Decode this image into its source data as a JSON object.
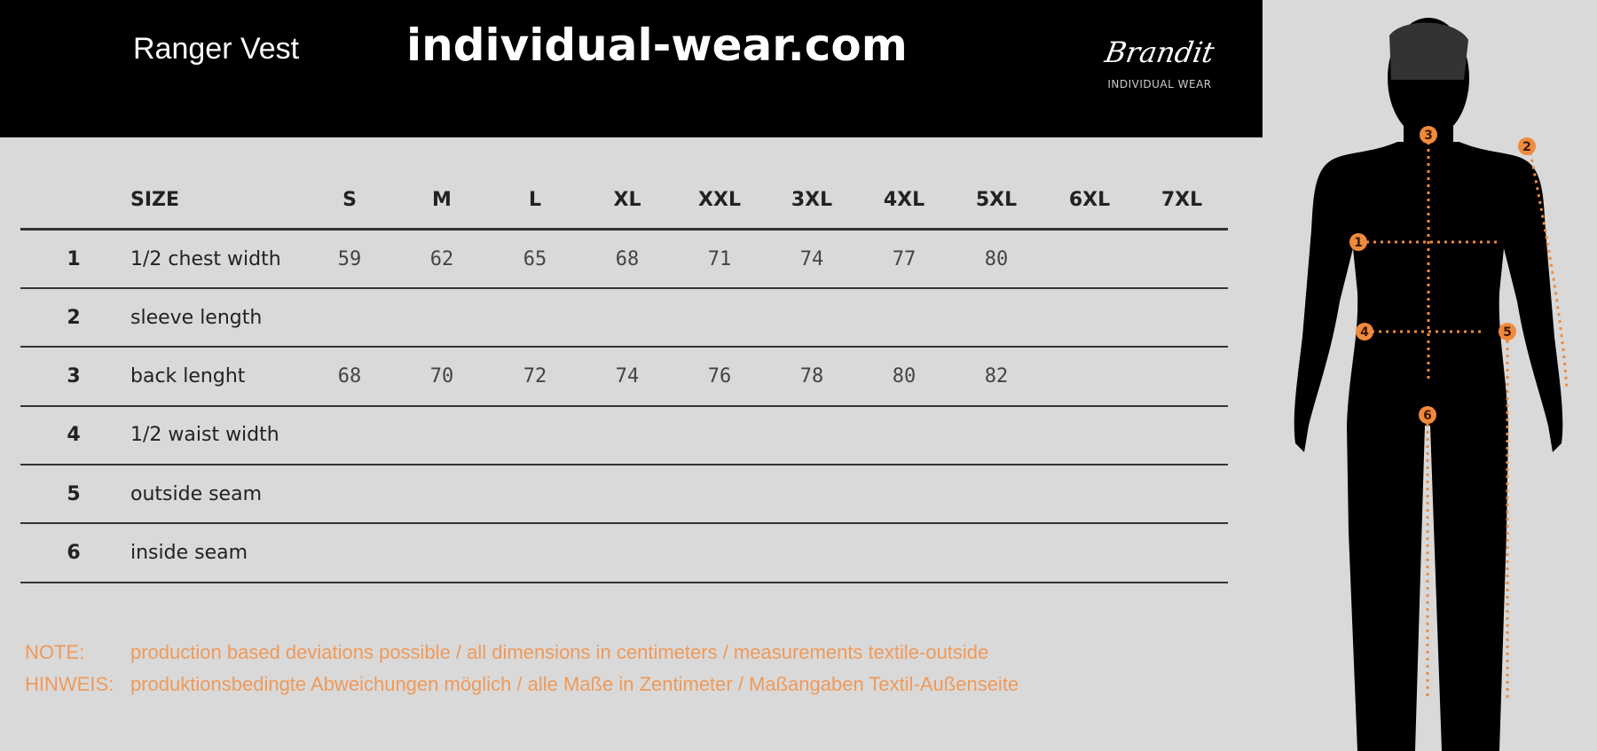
{
  "header": {
    "product": "Ranger Vest",
    "site": "individual-wear.com",
    "logo_script": "Brandit",
    "logo_sub": "INDIVIDUAL WEAR"
  },
  "table": {
    "size_label": "SIZE",
    "sizes": [
      "S",
      "M",
      "L",
      "XL",
      "XXL",
      "3XL",
      "4XL",
      "5XL",
      "6XL",
      "7XL"
    ],
    "rows": [
      {
        "num": "1",
        "label": "1/2 chest width",
        "values": [
          "59",
          "62",
          "65",
          "68",
          "71",
          "74",
          "77",
          "80",
          "",
          ""
        ]
      },
      {
        "num": "2",
        "label": "sleeve length",
        "values": [
          "",
          "",
          "",
          "",
          "",
          "",
          "",
          "",
          "",
          ""
        ]
      },
      {
        "num": "3",
        "label": "back lenght",
        "values": [
          "68",
          "70",
          "72",
          "74",
          "76",
          "78",
          "80",
          "82",
          "",
          ""
        ]
      },
      {
        "num": "4",
        "label": "1/2 waist width",
        "values": [
          "",
          "",
          "",
          "",
          "",
          "",
          "",
          "",
          "",
          ""
        ]
      },
      {
        "num": "5",
        "label": "outside seam",
        "values": [
          "",
          "",
          "",
          "",
          "",
          "",
          "",
          "",
          "",
          ""
        ]
      },
      {
        "num": "6",
        "label": "inside seam",
        "values": [
          "",
          "",
          "",
          "",
          "",
          "",
          "",
          "",
          "",
          ""
        ]
      }
    ]
  },
  "notes": [
    {
      "key": "NOTE:",
      "text": "production based deviations possible / all dimensions in centimeters / measurements textile-outside"
    },
    {
      "key": "HINWEIS:",
      "text": "produktionsbedingte Abweichungen möglich / alle Maße in Zentimeter / Maßangaben Textil-Außenseite"
    }
  ],
  "figure": {
    "markers": [
      "1",
      "2",
      "3",
      "4",
      "5",
      "6"
    ]
  },
  "colors": {
    "accent": "#f08a3c",
    "header_bg": "#000000",
    "page_bg": "#d9d9d9"
  }
}
